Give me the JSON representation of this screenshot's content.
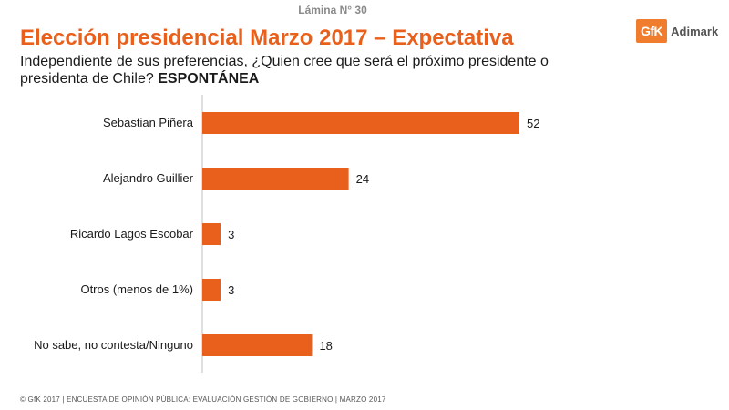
{
  "slide": {
    "number_label": "Lámina N° 30"
  },
  "header": {
    "title": "Elección presidencial Marzo 2017 – Expectativa",
    "subtitle": "Independiente de sus preferencias, ¿Quien cree que será el próximo presidente o presidenta de Chile?",
    "subtitle_emphasis": "ESPONTÁNEA"
  },
  "logo": {
    "mark": "GfK",
    "text": "Adimark"
  },
  "footer": {
    "text": "© GfK 2017 | ENCUESTA DE OPINIÓN PÚBLICA: EVALUACIÓN GESTIÓN DE GOBIERNO | MARZO 2017"
  },
  "colors": {
    "bar": "#e8601c",
    "title": "#e8601c",
    "axis": "#bfbfbf"
  },
  "chart_data": {
    "type": "bar",
    "orientation": "horizontal",
    "categories": [
      "Sebastian Piñera",
      "Alejandro Guillier",
      "Ricardo Lagos Escobar",
      "Otros (menos de 1%)",
      "No sabe, no contesta/Ninguno"
    ],
    "values": [
      52,
      24,
      3,
      3,
      18
    ],
    "xlim": [
      0,
      60
    ],
    "grid": false,
    "data_labels": true
  }
}
